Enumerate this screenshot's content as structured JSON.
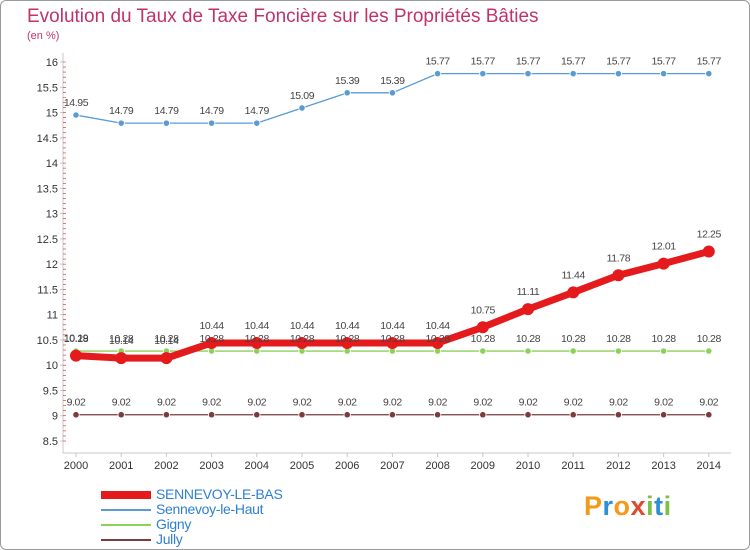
{
  "header": {
    "title": "Evolution du Taux de Taxe Foncière sur les Propriétés Bâties",
    "unit": "(en %)"
  },
  "logo": {
    "text": "Proxiti",
    "colors": [
      "#f39a1b",
      "#2d8fd5",
      "#f39a1b",
      "#e04a2c",
      "#7cc242",
      "#2d8fd5",
      "#7cc242"
    ]
  },
  "chart_data": {
    "type": "line",
    "title": "Evolution du Taux de Taxe Foncière sur les Propriétés Bâties",
    "ylabel": "(en %)",
    "xlabel": "",
    "categories": [
      "2000",
      "2001",
      "2002",
      "2003",
      "2004",
      "2005",
      "2006",
      "2007",
      "2008",
      "2009",
      "2010",
      "2011",
      "2012",
      "2013",
      "2014"
    ],
    "ylim": [
      8.5,
      16
    ],
    "yticks": [
      "8.5",
      "9",
      "9.5",
      "10",
      "10.5",
      "11",
      "11.5",
      "12",
      "12.5",
      "13",
      "13.5",
      "14",
      "14.5",
      "15",
      "15.5",
      "16"
    ],
    "grid": false,
    "legend_position": "bottom-left",
    "series": [
      {
        "name": "SENNEVOY-LE-BAS",
        "color": "#e41a1c",
        "style": "thick",
        "values": [
          10.19,
          10.14,
          10.14,
          10.44,
          10.44,
          10.44,
          10.44,
          10.44,
          10.44,
          10.75,
          11.11,
          11.44,
          11.78,
          12.01,
          12.25
        ],
        "labels": [
          "10.19",
          "10.14",
          "10.14",
          "10.44",
          "10.44",
          "10.44",
          "10.44",
          "10.44",
          "10.44",
          "10.75",
          "11.11",
          "11.44",
          "11.78",
          "12.01",
          "12.25"
        ]
      },
      {
        "name": "Sennevoy-le-Haut",
        "color": "#5b9bd5",
        "style": "thin",
        "values": [
          14.95,
          14.79,
          14.79,
          14.79,
          14.79,
          15.09,
          15.39,
          15.39,
          15.77,
          15.77,
          15.77,
          15.77,
          15.77,
          15.77,
          15.77
        ],
        "labels": [
          "14.95",
          "14.79",
          "14.79",
          "14.79",
          "14.79",
          "15.09",
          "15.39",
          "15.39",
          "15.77",
          "15.77",
          "15.77",
          "15.77",
          "15.77",
          "15.77",
          "15.77"
        ]
      },
      {
        "name": "Gigny",
        "color": "#8cd15a",
        "style": "thin",
        "values": [
          10.28,
          10.28,
          10.28,
          10.28,
          10.28,
          10.28,
          10.28,
          10.28,
          10.28,
          10.28,
          10.28,
          10.28,
          10.28,
          10.28,
          10.28
        ],
        "labels": [
          "10.28",
          "10.28",
          "10.28",
          "10.28",
          "10.28",
          "10.28",
          "10.28",
          "10.28",
          "10.28",
          "10.28",
          "10.28",
          "10.28",
          "10.28",
          "10.28",
          "10.28"
        ]
      },
      {
        "name": "Jully",
        "color": "#7a3c3c",
        "style": "thin",
        "values": [
          9.02,
          9.02,
          9.02,
          9.02,
          9.02,
          9.02,
          9.02,
          9.02,
          9.02,
          9.02,
          9.02,
          9.02,
          9.02,
          9.02,
          9.02
        ],
        "labels": [
          "9.02",
          "9.02",
          "9.02",
          "9.02",
          "9.02",
          "9.02",
          "9.02",
          "9.02",
          "9.02",
          "9.02",
          "9.02",
          "9.02",
          "9.02",
          "9.02",
          "9.02"
        ]
      }
    ]
  }
}
